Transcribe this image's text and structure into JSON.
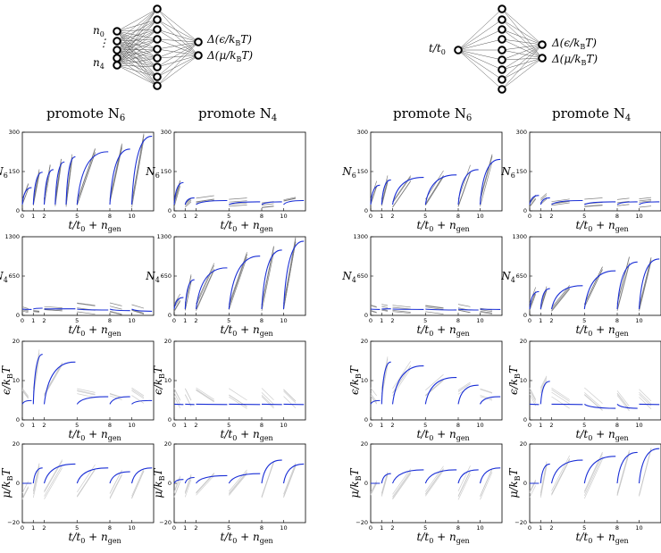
{
  "network_left": {
    "inputs": [
      "n",
      "n"
    ],
    "input_subs": [
      "0",
      "4"
    ],
    "outputs": [
      "Δ(ϵ/k",
      "Δ(μ/k"
    ],
    "output_tail": "T)",
    "sub_B": "B"
  },
  "network_right": {
    "input_main": "t/t",
    "input_sub": "0",
    "outputs": [
      "Δ(ϵ/k",
      "Δ(μ/k"
    ],
    "output_tail": "T)",
    "sub_B": "B"
  },
  "columns": [
    {
      "title_main": "promote N",
      "title_sub": "6"
    },
    {
      "title_main": "promote N",
      "title_sub": "4"
    },
    {
      "title_main": "promote N",
      "title_sub": "6"
    },
    {
      "title_main": "promote N",
      "title_sub": "4"
    }
  ],
  "axes": {
    "xlabel_main": "t/t",
    "xlabel_sub0": "0",
    "xlabel_plus": " + n",
    "xlabel_sub": "gen",
    "rows": [
      {
        "ylabel": "N",
        "ylabel_sub": "6",
        "yticks": [
          "0",
          "150",
          "300"
        ],
        "ylim": [
          0,
          300
        ]
      },
      {
        "ylabel": "N",
        "ylabel_sub": "4",
        "yticks": [
          "0",
          "650",
          "1300"
        ],
        "ylim": [
          0,
          1300
        ]
      },
      {
        "ylabel": "ϵ/k",
        "ylabel_sub": "B",
        "ylabel_tail": "T",
        "yticks": [
          "0",
          "10",
          "20"
        ],
        "ylim": [
          0,
          20
        ]
      },
      {
        "ylabel": "μ/k",
        "ylabel_sub": "B",
        "ylabel_tail": "T",
        "yticks": [
          "−20",
          "0",
          "20"
        ],
        "ylim": [
          -20,
          20
        ]
      }
    ],
    "xticks": [
      "0",
      "1",
      "2",
      "5",
      "8",
      "10"
    ],
    "xtick_positions": [
      0,
      1,
      2,
      5,
      8,
      10
    ],
    "xlim": [
      0,
      12
    ]
  },
  "chart_data": [
    {
      "type": "line",
      "panel": "row1-col1",
      "xlabel": "t/t0 + ngen",
      "ylabel": "N6",
      "ylim": [
        0,
        300
      ],
      "series": [
        {
          "values": [
            [
              0,
              90
            ],
            [
              1,
              150
            ],
            [
              2,
              160
            ],
            [
              3,
              190
            ],
            [
              4,
              210
            ],
            [
              5,
              230
            ],
            [
              8,
              240
            ],
            [
              10,
              290
            ]
          ]
        }
      ],
      "color": "#1a2fd6",
      "grid": false
    },
    {
      "type": "line",
      "panel": "row1-col2",
      "xlabel": "t/t0 + ngen",
      "ylabel": "N6",
      "ylim": [
        0,
        300
      ],
      "series": [
        {
          "values": [
            [
              0,
              110
            ],
            [
              1,
              50
            ],
            [
              2,
              40
            ],
            [
              5,
              35
            ],
            [
              8,
              35
            ],
            [
              10,
              40
            ]
          ]
        }
      ],
      "color": "#1a2fd6",
      "grid": false
    },
    {
      "type": "line",
      "panel": "row1-col3",
      "xlabel": "t/t0 + ngen",
      "ylabel": "N6",
      "ylim": [
        0,
        300
      ],
      "series": [
        {
          "values": [
            [
              0,
              100
            ],
            [
              1,
              120
            ],
            [
              2,
              130
            ],
            [
              5,
              140
            ],
            [
              8,
              160
            ],
            [
              10,
              200
            ]
          ]
        }
      ],
      "color": "#1a2fd6",
      "grid": false
    },
    {
      "type": "line",
      "panel": "row1-col4",
      "xlabel": "t/t0 + ngen",
      "ylabel": "N6",
      "ylim": [
        0,
        300
      ],
      "series": [
        {
          "values": [
            [
              0,
              60
            ],
            [
              1,
              50
            ],
            [
              2,
              40
            ],
            [
              5,
              35
            ],
            [
              8,
              35
            ],
            [
              10,
              35
            ]
          ]
        }
      ],
      "color": "#1a2fd6",
      "grid": false
    },
    {
      "type": "line",
      "panel": "row2-col1",
      "xlabel": "t/t0 + ngen",
      "ylabel": "N4",
      "ylim": [
        0,
        1300
      ],
      "series": [
        {
          "values": [
            [
              0,
              100
            ],
            [
              1,
              120
            ],
            [
              2,
              110
            ],
            [
              5,
              90
            ],
            [
              8,
              80
            ],
            [
              10,
              70
            ]
          ]
        }
      ],
      "color": "#1a2fd6",
      "grid": false
    },
    {
      "type": "line",
      "panel": "row2-col2",
      "xlabel": "t/t0 + ngen",
      "ylabel": "N4",
      "ylim": [
        0,
        1300
      ],
      "series": [
        {
          "values": [
            [
              0,
              300
            ],
            [
              1,
              600
            ],
            [
              2,
              800
            ],
            [
              5,
              1000
            ],
            [
              8,
              1100
            ],
            [
              10,
              1250
            ]
          ]
        }
      ],
      "color": "#1a2fd6",
      "grid": false
    },
    {
      "type": "line",
      "panel": "row2-col3",
      "xlabel": "t/t0 + ngen",
      "ylabel": "N4",
      "ylim": [
        0,
        1300
      ],
      "series": [
        {
          "values": [
            [
              0,
              100
            ],
            [
              1,
              110
            ],
            [
              2,
              100
            ],
            [
              5,
              90
            ],
            [
              8,
              90
            ],
            [
              10,
              100
            ]
          ]
        }
      ],
      "color": "#1a2fd6",
      "grid": false
    },
    {
      "type": "line",
      "panel": "row2-col4",
      "xlabel": "t/t0 + ngen",
      "ylabel": "N4",
      "ylim": [
        0,
        1300
      ],
      "series": [
        {
          "values": [
            [
              0,
              400
            ],
            [
              1,
              450
            ],
            [
              2,
              500
            ],
            [
              5,
              750
            ],
            [
              8,
              900
            ],
            [
              10,
              950
            ]
          ]
        }
      ],
      "color": "#1a2fd6",
      "grid": false
    },
    {
      "type": "line",
      "panel": "row3-col1",
      "xlabel": "t/t0 + ngen",
      "ylabel": "ϵ/kBT",
      "ylim": [
        0,
        20
      ],
      "series": [
        {
          "values": [
            [
              0,
              5
            ],
            [
              1,
              17
            ],
            [
              2,
              15
            ],
            [
              5,
              6
            ],
            [
              8,
              6
            ],
            [
              10,
              5
            ]
          ]
        }
      ],
      "color": "#1a2fd6",
      "grid": false
    },
    {
      "type": "line",
      "panel": "row3-col2",
      "xlabel": "t/t0 + ngen",
      "ylabel": "ϵ/kBT",
      "ylim": [
        0,
        20
      ],
      "series": [
        {
          "values": [
            [
              0,
              4
            ],
            [
              1,
              4
            ],
            [
              2,
              4
            ],
            [
              5,
              4
            ],
            [
              8,
              4
            ],
            [
              10,
              4
            ]
          ]
        }
      ],
      "color": "#1a2fd6",
      "grid": false
    },
    {
      "type": "line",
      "panel": "row3-col3",
      "xlabel": "t/t0 + ngen",
      "ylabel": "ϵ/kBT",
      "ylim": [
        0,
        20
      ],
      "series": [
        {
          "values": [
            [
              0,
              5
            ],
            [
              1,
              15
            ],
            [
              2,
              14
            ],
            [
              5,
              11
            ],
            [
              8,
              9
            ],
            [
              10,
              6
            ]
          ]
        }
      ],
      "color": "#1a2fd6",
      "grid": false
    },
    {
      "type": "line",
      "panel": "row3-col4",
      "xlabel": "t/t0 + ngen",
      "ylabel": "ϵ/kBT",
      "ylim": [
        0,
        20
      ],
      "series": [
        {
          "values": [
            [
              0,
              4
            ],
            [
              1,
              10
            ],
            [
              2,
              4
            ],
            [
              5,
              3
            ],
            [
              8,
              3
            ],
            [
              10,
              4
            ]
          ]
        }
      ],
      "color": "#1a2fd6",
      "grid": false
    },
    {
      "type": "line",
      "panel": "row4-col1",
      "xlabel": "t/t0 + ngen",
      "ylabel": "μ/kBT",
      "ylim": [
        -20,
        20
      ],
      "series": [
        {
          "values": [
            [
              0,
              0
            ],
            [
              1,
              8
            ],
            [
              2,
              10
            ],
            [
              5,
              8
            ],
            [
              8,
              6
            ],
            [
              10,
              8
            ]
          ]
        }
      ],
      "color": "#1a2fd6",
      "grid": false
    },
    {
      "type": "line",
      "panel": "row4-col2",
      "xlabel": "t/t0 + ngen",
      "ylabel": "μ/kBT",
      "ylim": [
        -20,
        20
      ],
      "series": [
        {
          "values": [
            [
              0,
              2
            ],
            [
              1,
              3
            ],
            [
              2,
              4
            ],
            [
              5,
              5
            ],
            [
              8,
              12
            ],
            [
              10,
              10
            ]
          ]
        }
      ],
      "color": "#1a2fd6",
      "grid": false
    },
    {
      "type": "line",
      "panel": "row4-col3",
      "xlabel": "t/t0 + ngen",
      "ylabel": "μ/kBT",
      "ylim": [
        -20,
        20
      ],
      "series": [
        {
          "values": [
            [
              0,
              0
            ],
            [
              1,
              5
            ],
            [
              2,
              7
            ],
            [
              5,
              7
            ],
            [
              8,
              7
            ],
            [
              10,
              8
            ]
          ]
        }
      ],
      "color": "#1a2fd6",
      "grid": false
    },
    {
      "type": "line",
      "panel": "row4-col4",
      "xlabel": "t/t0 + ngen",
      "ylabel": "μ/kBT",
      "ylim": [
        -20,
        20
      ],
      "series": [
        {
          "values": [
            [
              0,
              0
            ],
            [
              1,
              10
            ],
            [
              2,
              12
            ],
            [
              5,
              14
            ],
            [
              8,
              16
            ],
            [
              10,
              18
            ]
          ]
        }
      ],
      "color": "#1a2fd6",
      "grid": false
    }
  ]
}
